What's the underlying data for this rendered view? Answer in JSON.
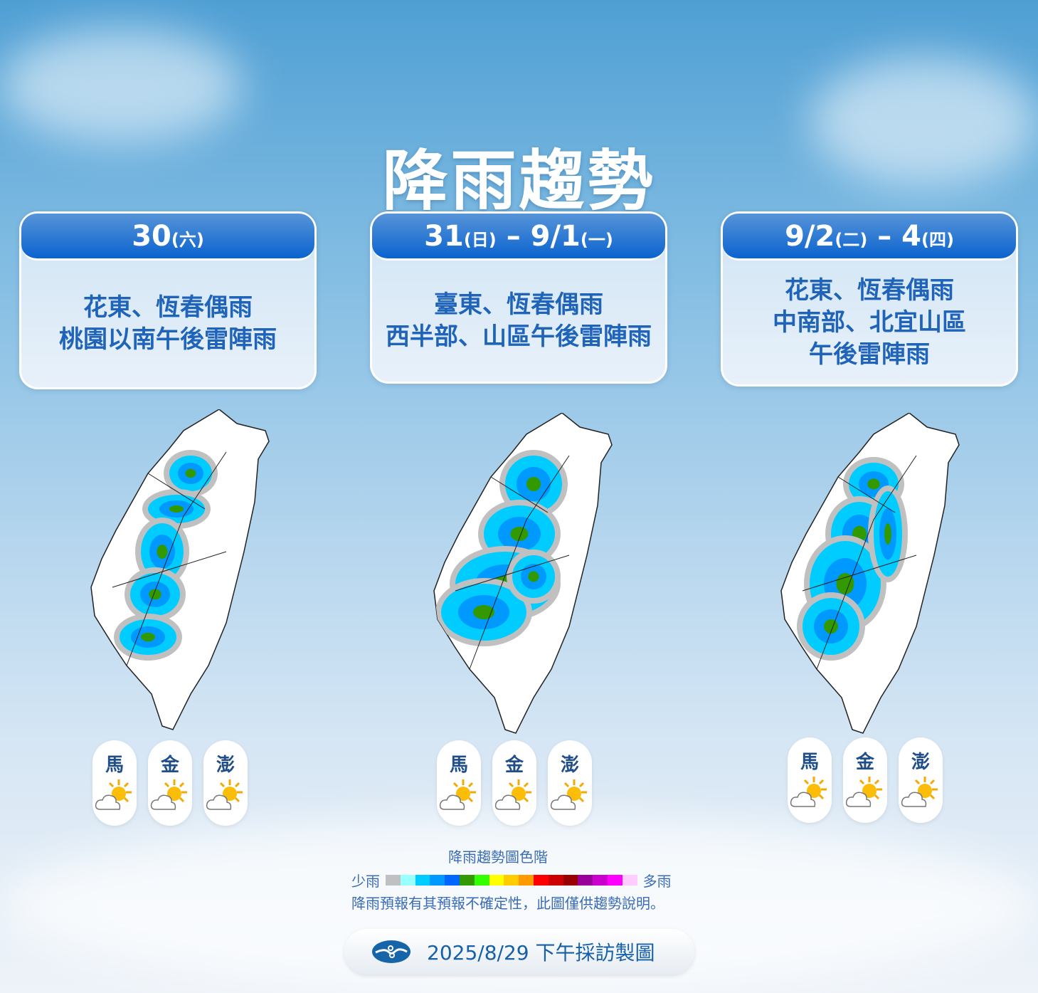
{
  "title": "降雨趨勢",
  "periods": [
    {
      "date": "30",
      "date_note": "(六)",
      "date2": "",
      "date2_note": "",
      "lines": [
        "花東、恆春偶雨",
        "桃園以南午後雷陣雨"
      ]
    },
    {
      "date": "31",
      "date_note": "(日)",
      "date2": " – 9/1",
      "date2_note": "(一)",
      "lines": [
        "臺東、恆春偶雨",
        "西半部、山區午後雷陣雨"
      ]
    },
    {
      "date": "9/2",
      "date_note": "(二)",
      "date2": " – 4",
      "date2_note": "(四)",
      "lines": [
        "花東、恆春偶雨",
        "中南部、北宜山區",
        "午後雷陣雨"
      ]
    }
  ],
  "islands": [
    {
      "name": "馬",
      "weather": "partly-cloudy-icon"
    },
    {
      "name": "金",
      "weather": "partly-cloudy-icon"
    },
    {
      "name": "澎",
      "weather": "partly-cloudy-icon"
    }
  ],
  "legend": {
    "title": "降雨趨勢圖色階",
    "low": "少雨",
    "high": "多雨",
    "colors": [
      "#c0c0c0",
      "#99ffff",
      "#00ccff",
      "#0099ff",
      "#0066ff",
      "#339900",
      "#33ff00",
      "#ffff00",
      "#ffcc00",
      "#ff9900",
      "#ff0000",
      "#cc0000",
      "#990000",
      "#990099",
      "#cc00cc",
      "#ff00ff",
      "#ffccff"
    ],
    "note": "降雨預報有其預報不確定性，此圖僅供趨勢說明。"
  },
  "footer": {
    "text": "2025/8/29 下午採訪製圖",
    "logo": "cwa-logo"
  }
}
